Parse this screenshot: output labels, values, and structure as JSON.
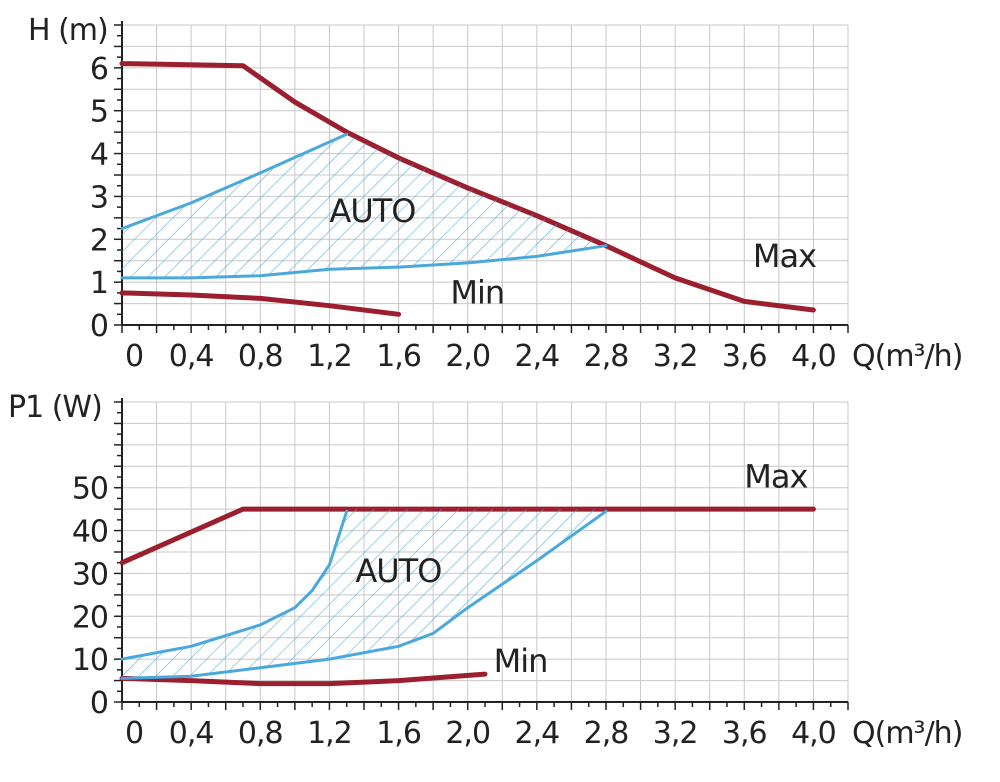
{
  "colors": {
    "max_curve": "#9b1f2e",
    "auto_curve": "#4aa9dc",
    "hatch": "#4aa9dc",
    "grid": "#c8c8c8",
    "axis": "#222222",
    "text": "#222222"
  },
  "chart_data": [
    {
      "type": "line",
      "xlabel": "Q(m³/h)",
      "ylabel": "H (m)",
      "xlim": [
        0,
        4.0
      ],
      "ylim": [
        0,
        7
      ],
      "x_ticks": [
        {
          "value": 0,
          "label": "0"
        },
        {
          "value": 0.4,
          "label": "0,4"
        },
        {
          "value": 0.8,
          "label": "0,8"
        },
        {
          "value": 1.2,
          "label": "1,2"
        },
        {
          "value": 1.6,
          "label": "1,6"
        },
        {
          "value": 2.0,
          "label": "2,0"
        },
        {
          "value": 2.4,
          "label": "2,4"
        },
        {
          "value": 2.8,
          "label": "2,8"
        },
        {
          "value": 3.2,
          "label": "3,2"
        },
        {
          "value": 3.6,
          "label": "3,6"
        },
        {
          "value": 4.0,
          "label": "4,0"
        }
      ],
      "y_ticks": [
        {
          "value": 0,
          "label": "0"
        },
        {
          "value": 1,
          "label": "1"
        },
        {
          "value": 2,
          "label": "2"
        },
        {
          "value": 3,
          "label": "3"
        },
        {
          "value": 4,
          "label": "4"
        },
        {
          "value": 5,
          "label": "5"
        },
        {
          "value": 6,
          "label": "6"
        }
      ],
      "grid": true,
      "series": [
        {
          "name": "Max",
          "style": "max",
          "points": [
            [
              0,
              6.1
            ],
            [
              0.7,
              6.05
            ],
            [
              1.0,
              5.2
            ],
            [
              1.3,
              4.5
            ],
            [
              1.6,
              3.9
            ],
            [
              2.0,
              3.2
            ],
            [
              2.4,
              2.55
            ],
            [
              2.8,
              1.85
            ],
            [
              3.2,
              1.1
            ],
            [
              3.6,
              0.55
            ],
            [
              4.0,
              0.35
            ]
          ]
        },
        {
          "name": "Min",
          "style": "max",
          "points": [
            [
              0,
              0.75
            ],
            [
              0.4,
              0.7
            ],
            [
              0.8,
              0.62
            ],
            [
              1.2,
              0.45
            ],
            [
              1.6,
              0.25
            ]
          ]
        },
        {
          "name": "AUTO",
          "style": "auto",
          "upper": [
            [
              0,
              2.25
            ],
            [
              0.4,
              2.85
            ],
            [
              0.8,
              3.55
            ],
            [
              1.3,
              4.45
            ]
          ],
          "lower": [
            [
              0,
              1.1
            ],
            [
              0.4,
              1.1
            ],
            [
              0.8,
              1.15
            ],
            [
              1.2,
              1.3
            ],
            [
              1.6,
              1.35
            ],
            [
              2.0,
              1.45
            ],
            [
              2.4,
              1.6
            ],
            [
              2.8,
              1.85
            ]
          ],
          "fill_along_max": [
            [
              1.3,
              4.5
            ],
            [
              1.6,
              3.9
            ],
            [
              2.0,
              3.2
            ],
            [
              2.4,
              2.55
            ],
            [
              2.8,
              1.85
            ]
          ]
        }
      ],
      "annotations": [
        {
          "text": "AUTO",
          "x": 1.2,
          "y": 2.4
        },
        {
          "text": "Max",
          "x": 3.65,
          "y": 1.35
        },
        {
          "text": "Min",
          "x": 1.9,
          "y": 0.5
        }
      ]
    },
    {
      "type": "line",
      "xlabel": "Q(m³/h)",
      "ylabel": "P1 (W)",
      "xlim": [
        0,
        4.0
      ],
      "ylim": [
        0,
        70
      ],
      "x_ticks": [
        {
          "value": 0,
          "label": "0"
        },
        {
          "value": 0.4,
          "label": "0,4"
        },
        {
          "value": 0.8,
          "label": "0,8"
        },
        {
          "value": 1.2,
          "label": "1,2"
        },
        {
          "value": 1.6,
          "label": "1,6"
        },
        {
          "value": 2.0,
          "label": "2,0"
        },
        {
          "value": 2.4,
          "label": "2,4"
        },
        {
          "value": 2.8,
          "label": "2,8"
        },
        {
          "value": 3.2,
          "label": "3,2"
        },
        {
          "value": 3.6,
          "label": "3,6"
        },
        {
          "value": 4.0,
          "label": "4,0"
        }
      ],
      "y_ticks": [
        {
          "value": 0,
          "label": "0"
        },
        {
          "value": 10,
          "label": "10"
        },
        {
          "value": 20,
          "label": "20"
        },
        {
          "value": 30,
          "label": "30"
        },
        {
          "value": 40,
          "label": "40"
        },
        {
          "value": 50,
          "label": "50"
        }
      ],
      "grid": true,
      "series": [
        {
          "name": "Max",
          "style": "max",
          "points": [
            [
              0,
              32.5
            ],
            [
              0.7,
              45
            ],
            [
              4.0,
              45
            ]
          ]
        },
        {
          "name": "Min",
          "style": "max",
          "points": [
            [
              0,
              5.5
            ],
            [
              0.4,
              5.0
            ],
            [
              0.8,
              4.3
            ],
            [
              1.2,
              4.3
            ],
            [
              1.6,
              5.0
            ],
            [
              2.1,
              6.5
            ]
          ]
        },
        {
          "name": "AUTO",
          "style": "auto",
          "left": [
            [
              0,
              10
            ],
            [
              0.4,
              13
            ],
            [
              0.8,
              18
            ],
            [
              1.0,
              22
            ],
            [
              1.1,
              26
            ],
            [
              1.2,
              32
            ],
            [
              1.3,
              44.5
            ]
          ],
          "right": [
            [
              0,
              5.5
            ],
            [
              0.4,
              6
            ],
            [
              0.8,
              8
            ],
            [
              1.2,
              10
            ],
            [
              1.6,
              13
            ],
            [
              1.8,
              16
            ],
            [
              2.0,
              22
            ],
            [
              2.4,
              33
            ],
            [
              2.8,
              44.5
            ]
          ],
          "top_edge": [
            [
              1.3,
              45
            ],
            [
              2.8,
              45
            ]
          ]
        }
      ],
      "annotations": [
        {
          "text": "AUTO",
          "x": 1.35,
          "y": 28
        },
        {
          "text": "Max",
          "x": 3.6,
          "y": 50
        },
        {
          "text": "Min",
          "x": 2.15,
          "y": 7
        }
      ]
    }
  ]
}
